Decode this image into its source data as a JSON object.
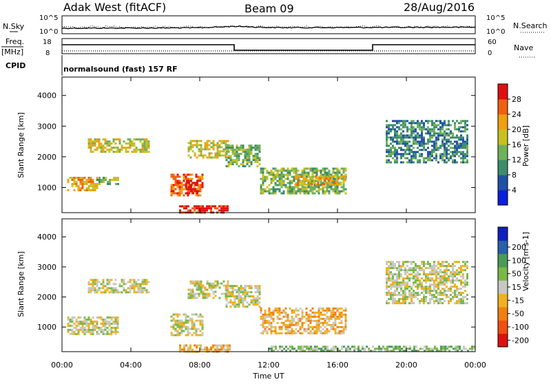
{
  "header": {
    "station": "Adak West (fitACF)",
    "beam": "Beam 09",
    "date": "28/Aug/2016"
  },
  "panels": {
    "nsky": {
      "label": "N.Sky",
      "ticks": [
        "10^5",
        "10^0"
      ],
      "right_label": "N.Search",
      "right_ticks": [
        "10^5",
        "10^0"
      ]
    },
    "freq": {
      "label_top": "Freq.",
      "label_bottom": "[MHz]",
      "ticks": [
        "18",
        "8"
      ],
      "right_label": "Nave",
      "right_ticks": [
        "60",
        "0"
      ]
    },
    "cpid": {
      "label": "CPID",
      "text": "normalsound (fast) 157 RF"
    }
  },
  "colors": {
    "power": [
      "#0a1fe0",
      "#2050a8",
      "#3c8c6a",
      "#6fb05a",
      "#c8c020",
      "#f0a010",
      "#f06010",
      "#e01010"
    ],
    "velocity": [
      "#e01010",
      "#f05010",
      "#f08010",
      "#f0b020",
      "#c8c8c0",
      "#7ab848",
      "#4a9a58",
      "#2a60a8",
      "#1020c0"
    ]
  },
  "chart_data": [
    {
      "type": "heatmap",
      "quantity": "Power",
      "ylabel": "Slant Range [km]",
      "yticks": [
        1000,
        2000,
        3000,
        4000
      ],
      "ylim": [
        180,
        4600
      ],
      "xlim_hours": [
        0,
        24
      ],
      "colorbar_label": "Power [dB]",
      "colorbar_ticks": [
        4,
        8,
        12,
        16,
        20,
        24,
        28
      ],
      "colorbar_range": [
        0,
        32
      ],
      "regions": [
        {
          "t": [
            0.3,
            2.0
          ],
          "r": [
            900,
            1350
          ],
          "level": 5
        },
        {
          "t": [
            2.0,
            3.3
          ],
          "r": [
            1100,
            1350
          ],
          "level": 3
        },
        {
          "t": [
            1.5,
            5.0
          ],
          "r": [
            2150,
            2600
          ],
          "level": 4
        },
        {
          "t": [
            6.3,
            8.2
          ],
          "r": [
            720,
            1450
          ],
          "level": 6
        },
        {
          "t": [
            7.2,
            7.9
          ],
          "r": [
            800,
            1250
          ],
          "level": 8
        },
        {
          "t": [
            6.8,
            9.7
          ],
          "r": [
            200,
            420
          ],
          "level": 7
        },
        {
          "t": [
            7.3,
            9.7
          ],
          "r": [
            2000,
            2550
          ],
          "level": 4
        },
        {
          "t": [
            9.5,
            11.5
          ],
          "r": [
            1700,
            2400
          ],
          "level": 3
        },
        {
          "t": [
            11.5,
            16.5
          ],
          "r": [
            800,
            1650
          ],
          "level": 3
        },
        {
          "t": [
            13.5,
            16.5
          ],
          "r": [
            1100,
            1400
          ],
          "level": 5
        },
        {
          "t": [
            18.8,
            23.5
          ],
          "r": [
            1800,
            3200
          ],
          "level": 2
        }
      ]
    },
    {
      "type": "heatmap",
      "quantity": "Velocity",
      "ylabel": "Slant Range [km]",
      "yticks": [
        1000,
        2000,
        3000,
        4000
      ],
      "ylim": [
        180,
        4600
      ],
      "xlabel": "Time UT",
      "xticks": [
        "00:00",
        "04:00",
        "08:00",
        "12:00",
        "16:00",
        "20:00",
        "00:00"
      ],
      "xlim_hours": [
        0,
        24
      ],
      "colorbar_label": "Velocity [m s-1]",
      "colorbar_ticks": [
        -200,
        -100,
        -50,
        -15,
        15,
        50,
        100,
        200
      ],
      "regions": [
        {
          "t": [
            0.3,
            3.3
          ],
          "r": [
            800,
            1350
          ],
          "level": 4
        },
        {
          "t": [
            1.5,
            5.0
          ],
          "r": [
            2150,
            2600
          ],
          "level": 4
        },
        {
          "t": [
            6.3,
            8.2
          ],
          "r": [
            720,
            1450
          ],
          "level": 4
        },
        {
          "t": [
            6.8,
            9.7
          ],
          "r": [
            200,
            420
          ],
          "level": 3
        },
        {
          "t": [
            7.3,
            9.7
          ],
          "r": [
            2000,
            2550
          ],
          "level": 4
        },
        {
          "t": [
            9.5,
            11.5
          ],
          "r": [
            1700,
            2400
          ],
          "level": 4
        },
        {
          "t": [
            11.5,
            16.5
          ],
          "r": [
            800,
            1650
          ],
          "level": 3
        },
        {
          "t": [
            18.8,
            23.5
          ],
          "r": [
            1800,
            3200
          ],
          "level": 4
        },
        {
          "t": [
            12.0,
            24.0
          ],
          "r": [
            200,
            380
          ],
          "level": 5
        }
      ]
    }
  ]
}
